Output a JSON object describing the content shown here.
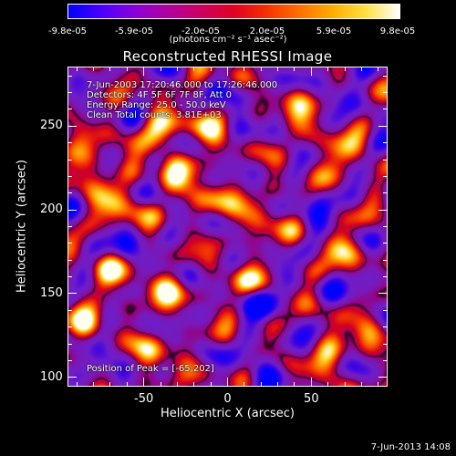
{
  "colorbar": {
    "ticks": [
      "-9.8e-05",
      "-5.9e-05",
      "-2.0e-05",
      "2.0e-05",
      "5.9e-05",
      "9.8e-05"
    ],
    "units_text": "(photons cm⁻² s⁻¹ asec⁻²)"
  },
  "title": "Reconstructed RHESSI Image",
  "info": {
    "time_range": "7-Jun-2003 17:20:46.000 to 17:26:46.000",
    "detectors": "Detectors: 4F 5F 6F 7F 8F, Att 0",
    "energy_range": "Energy Range: 25.0 - 50.0 keV",
    "clean_counts": "Clean     Total counts: 3.81E+03",
    "peak_position": "Position of Peak = [-65,202]"
  },
  "footer": {
    "date": "7-Jun-2013 14:08"
  },
  "chart_data": {
    "type": "heatmap",
    "title": "Reconstructed RHESSI Image",
    "xlabel": "Heliocentric X (arcsec)",
    "ylabel": "Heliocentric Y (arcsec)",
    "xlim": [
      -95,
      95
    ],
    "ylim": [
      95,
      285
    ],
    "x_ticks": [
      -50,
      0,
      50
    ],
    "y_ticks": [
      100,
      150,
      200,
      250
    ],
    "colorbar_range": [
      -9.8e-05,
      9.8e-05
    ],
    "colorbar_ticks": [
      -9.8e-05,
      -5.9e-05,
      -2e-05,
      2e-05,
      5.9e-05,
      9.8e-05
    ],
    "peak_position": [
      -65,
      202
    ],
    "bright_sources": [
      {
        "x": -65,
        "y": 202,
        "value": 1.0
      },
      {
        "x": -82,
        "y": 228,
        "value": 0.92
      },
      {
        "x": -42,
        "y": 246,
        "value": 0.88
      },
      {
        "x": -32,
        "y": 221,
        "value": 0.78
      },
      {
        "x": -15,
        "y": 250,
        "value": 0.82
      },
      {
        "x": -10,
        "y": 208,
        "value": 0.74
      },
      {
        "x": 18,
        "y": 196,
        "value": 0.68
      },
      {
        "x": 42,
        "y": 258,
        "value": 0.63
      },
      {
        "x": 65,
        "y": 232,
        "value": 0.86
      },
      {
        "x": 72,
        "y": 176,
        "value": 0.76
      },
      {
        "x": -72,
        "y": 160,
        "value": 0.78
      },
      {
        "x": -85,
        "y": 130,
        "value": 0.7
      },
      {
        "x": -38,
        "y": 152,
        "value": 0.82
      },
      {
        "x": 10,
        "y": 157,
        "value": 0.66
      },
      {
        "x": -45,
        "y": 113,
        "value": 0.72
      },
      {
        "x": 60,
        "y": 112,
        "value": 0.7
      },
      {
        "x": 82,
        "y": 130,
        "value": 0.62
      }
    ],
    "dark_sources": [
      {
        "x": 20,
        "y": 145,
        "value": -0.92
      },
      {
        "x": -60,
        "y": 180,
        "value": -0.62
      },
      {
        "x": 55,
        "y": 205,
        "value": -0.6
      },
      {
        "x": 5,
        "y": 265,
        "value": -0.55
      },
      {
        "x": -75,
        "y": 110,
        "value": -0.55
      },
      {
        "x": 70,
        "y": 275,
        "value": -0.55
      },
      {
        "x": 20,
        "y": 110,
        "value": -0.65
      },
      {
        "x": 80,
        "y": 155,
        "value": -0.5
      }
    ]
  }
}
